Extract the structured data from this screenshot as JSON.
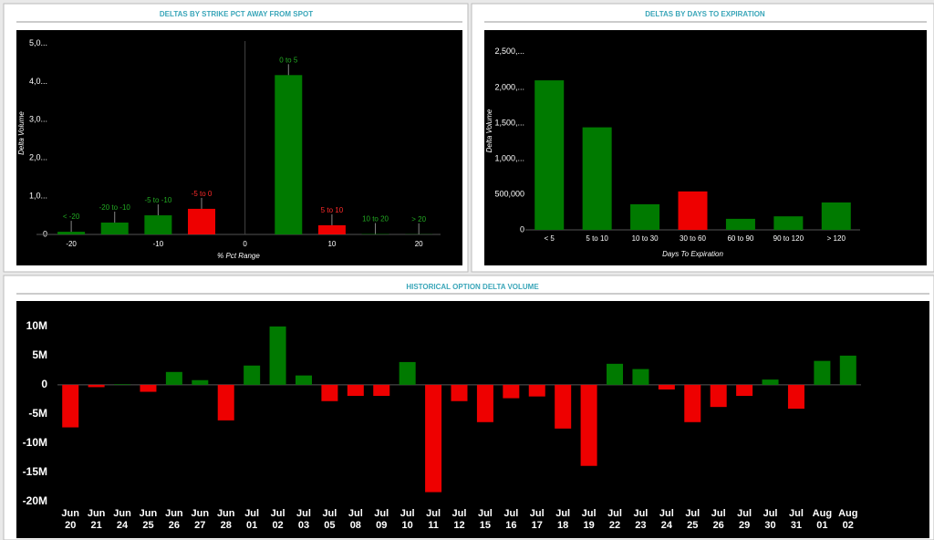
{
  "chart_data": [
    {
      "type": "bar",
      "title": "DELTAS BY STRIKE PCT AWAY FROM SPOT",
      "x_label": "% Pct Range",
      "y_label": "Delta Volume",
      "x": [
        -20,
        -15,
        -10,
        -5,
        5,
        10,
        15,
        20
      ],
      "bar_labels": [
        "< -20",
        "-20 to -10",
        "-5 to -10",
        "-5 to 0",
        "0 to 5",
        "5 to 10",
        "10 to 20",
        "> 20"
      ],
      "values": [
        70000,
        310000,
        500000,
        670000,
        4170000,
        240000,
        10000,
        5000
      ],
      "colors": [
        "#007a00",
        "#007a00",
        "#007a00",
        "#ee0000",
        "#007a00",
        "#ee0000",
        "#007a00",
        "#007a00"
      ],
      "xlim": [
        -24,
        22.5
      ],
      "xticks": [
        -20,
        -10,
        0,
        10,
        20
      ],
      "ylim": [
        0,
        5300000
      ],
      "yticks": [
        0,
        {
          "value": 1000000,
          "label": "1,0..."
        },
        {
          "value": 2000000,
          "label": "2,0..."
        },
        {
          "value": 3000000,
          "label": "3,0..."
        },
        {
          "value": 4000000,
          "label": "4,0..."
        },
        {
          "value": 5000000,
          "label": "5,0..."
        }
      ]
    },
    {
      "type": "bar",
      "title": "DELTAS BY DAYS TO EXPIRATION",
      "x_label": "Days To Expiration",
      "y_label": "Delta Volume",
      "categories": [
        "< 5",
        "5 to 10",
        "10 to 30",
        "30 to 60",
        "60 to 90",
        "90 to 120",
        "> 120"
      ],
      "values": [
        2100000,
        1440000,
        360000,
        540000,
        155000,
        190000,
        385000
      ],
      "colors": [
        "#007a00",
        "#007a00",
        "#007a00",
        "#ee0000",
        "#007a00",
        "#007a00",
        "#007a00"
      ],
      "ylim": [
        0,
        2780000
      ],
      "yticks": [
        0,
        {
          "value": 500000,
          "label": "500,000"
        },
        {
          "value": 1000000,
          "label": "1,000,..."
        },
        {
          "value": 1500000,
          "label": "1,500,..."
        },
        {
          "value": 2000000,
          "label": "2,000,..."
        },
        {
          "value": 2500000,
          "label": "2,500,..."
        }
      ]
    },
    {
      "type": "bar",
      "title": "HISTORICAL OPTION DELTA VOLUME",
      "categories": [
        "Jun 20",
        "Jun 21",
        "Jun 24",
        "Jun 25",
        "Jun 26",
        "Jun 27",
        "Jun 28",
        "Jul 01",
        "Jul 02",
        "Jul 03",
        "Jul 05",
        "Jul 08",
        "Jul 09",
        "Jul 10",
        "Jul 11",
        "Jul 12",
        "Jul 15",
        "Jul 16",
        "Jul 17",
        "Jul 18",
        "Jul 19",
        "Jul 22",
        "Jul 23",
        "Jul 24",
        "Jul 25",
        "Jul 26",
        "Jul 29",
        "Jul 30",
        "Jul 31",
        "Aug 01",
        "Aug 02"
      ],
      "values": [
        -7300000,
        -400000,
        100000,
        -1200000,
        2200000,
        800000,
        -6100000,
        3300000,
        10000000,
        1600000,
        -2800000,
        -1900000,
        -1900000,
        3900000,
        -18400000,
        -2800000,
        -6400000,
        -2300000,
        -2000000,
        -7500000,
        -13900000,
        3600000,
        2700000,
        -800000,
        -6400000,
        -3800000,
        -1900000,
        900000,
        -4100000,
        4100000,
        5000000
      ],
      "positive_color": "#007a00",
      "negative_color": "#ee0000",
      "ylim": [
        -21600000,
        12800000
      ],
      "yticks": [
        {
          "value": 10000000,
          "label": "10M"
        },
        {
          "value": 5000000,
          "label": "5M"
        },
        0,
        {
          "value": -5000000,
          "label": "-5M"
        },
        {
          "value": -10000000,
          "label": "-10M"
        },
        {
          "value": -15000000,
          "label": "-15M"
        },
        {
          "value": -20000000,
          "label": "-20M"
        }
      ]
    }
  ]
}
